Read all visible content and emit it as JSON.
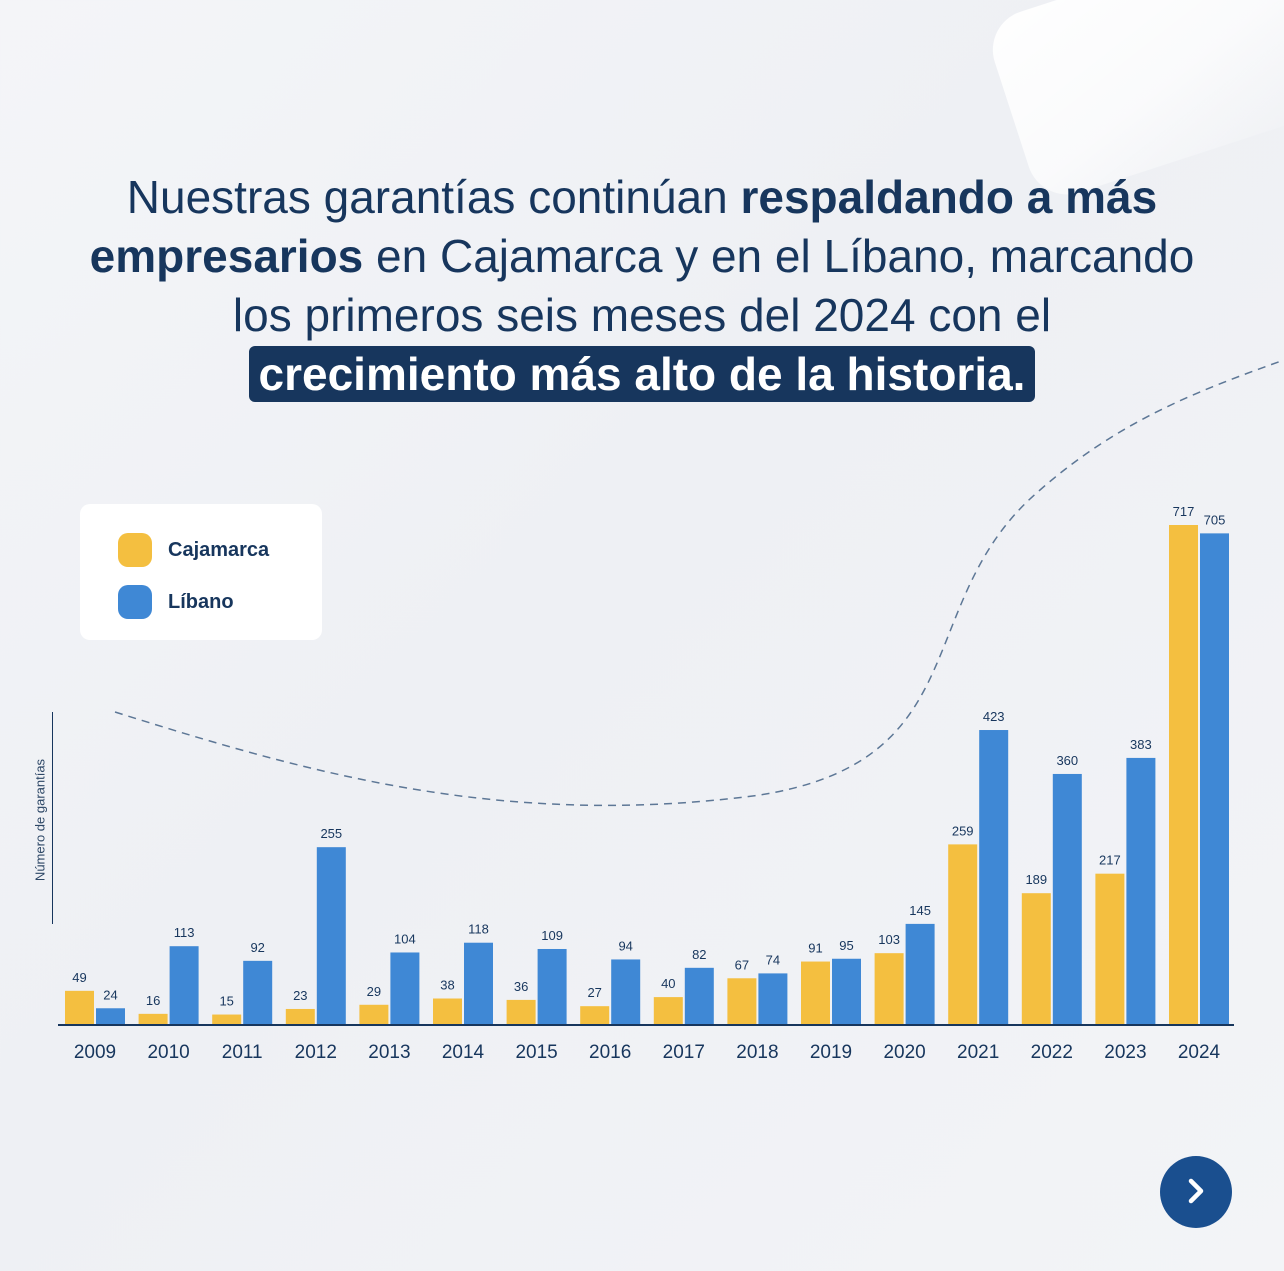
{
  "headline": {
    "part1": "Nuestras garantías continúan ",
    "bold1": "respaldando a más empresarios",
    "part2": " en Cajamarca y en el Líbano, marcando los primeros seis meses del 2024 con el ",
    "highlight": "crecimiento más alto de la historia."
  },
  "colors": {
    "cajamarca": "#f4bf40",
    "libano": "#3f88d5",
    "navy": "#17365d",
    "button": "#1a4f8f"
  },
  "navigation": {
    "next_icon": "chevron-right-icon"
  },
  "chart_data": {
    "type": "bar",
    "ylabel": "Número de garantías",
    "categories": [
      "2009",
      "2010",
      "2011",
      "2012",
      "2013",
      "2014",
      "2015",
      "2016",
      "2017",
      "2018",
      "2019",
      "2020",
      "2021",
      "2022",
      "2023",
      "2024"
    ],
    "series": [
      {
        "name": "Cajamarca",
        "values": [
          49,
          16,
          15,
          23,
          29,
          38,
          36,
          27,
          40,
          67,
          91,
          103,
          259,
          189,
          217,
          717
        ]
      },
      {
        "name": "Líbano",
        "values": [
          24,
          113,
          92,
          255,
          104,
          118,
          109,
          94,
          82,
          74,
          95,
          145,
          423,
          360,
          383,
          705
        ]
      }
    ],
    "legend_position": "top-left",
    "grid": false
  }
}
